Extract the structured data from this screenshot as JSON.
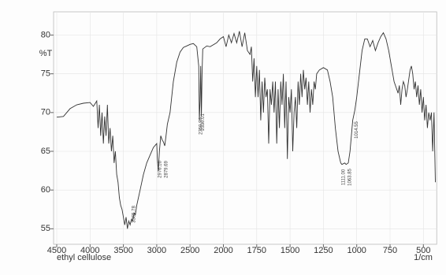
{
  "chart_data": {
    "type": "line",
    "y_label": "%T",
    "x_label": "ethyl cellulose",
    "x_unit": "1/cm",
    "xlim": [
      4500,
      400
    ],
    "ylim": [
      53,
      83
    ],
    "xticks": [
      4500,
      4000,
      3500,
      3000,
      2500,
      2000,
      1750,
      1500,
      1250,
      1000,
      750,
      500
    ],
    "yticks": [
      55,
      60,
      65,
      70,
      75,
      80
    ],
    "grid": true,
    "color": "#333333",
    "annotations": [
      3365.78,
      2976.16,
      2879.69,
      2359.94,
      2330.01,
      {
        "value": 1111,
        "label": "1111.00"
      },
      1063.85,
      1014.55
    ],
    "x": [
      4500,
      4400,
      4300,
      4200,
      4100,
      4000,
      3950,
      3900,
      3880,
      3860,
      3840,
      3820,
      3800,
      3780,
      3760,
      3740,
      3720,
      3700,
      3680,
      3660,
      3640,
      3620,
      3600,
      3580,
      3560,
      3540,
      3520,
      3500,
      3480,
      3460,
      3440,
      3420,
      3400,
      3380,
      3360,
      3340,
      3320,
      3300,
      3250,
      3200,
      3150,
      3100,
      3050,
      3000,
      2990,
      2976,
      2960,
      2940,
      2920,
      2900,
      2879,
      2860,
      2840,
      2800,
      2750,
      2700,
      2650,
      2600,
      2550,
      2500,
      2450,
      2400,
      2370,
      2360,
      2350,
      2340,
      2330,
      2320,
      2310,
      2250,
      2200,
      2100,
      2050,
      2000,
      1980,
      1960,
      1940,
      1920,
      1900,
      1880,
      1860,
      1840,
      1820,
      1800,
      1790,
      1780,
      1770,
      1760,
      1750,
      1740,
      1730,
      1720,
      1710,
      1700,
      1690,
      1680,
      1670,
      1660,
      1650,
      1640,
      1630,
      1620,
      1610,
      1600,
      1590,
      1580,
      1570,
      1560,
      1550,
      1540,
      1530,
      1520,
      1510,
      1500,
      1490,
      1480,
      1470,
      1460,
      1450,
      1440,
      1430,
      1420,
      1410,
      1400,
      1390,
      1380,
      1370,
      1360,
      1350,
      1340,
      1330,
      1320,
      1310,
      1300,
      1280,
      1250,
      1220,
      1200,
      1180,
      1160,
      1140,
      1120,
      1111,
      1090,
      1080,
      1063,
      1050,
      1040,
      1030,
      1014,
      1000,
      980,
      960,
      940,
      920,
      900,
      880,
      860,
      840,
      820,
      800,
      780,
      760,
      740,
      720,
      700,
      690,
      680,
      670,
      660,
      650,
      640,
      630,
      620,
      600,
      590,
      580,
      570,
      560,
      550,
      540,
      530,
      520,
      510,
      500,
      490,
      480,
      470,
      460,
      450,
      440,
      430,
      420,
      410
    ],
    "values": [
      69.4,
      69.5,
      70.5,
      71.0,
      71.2,
      71.3,
      70.8,
      71.5,
      68,
      71,
      67,
      70,
      66,
      69.5,
      67,
      71,
      66,
      68,
      65,
      67,
      63.5,
      65,
      62,
      61,
      59,
      58,
      57.5,
      56.5,
      55.5,
      56.5,
      55,
      56,
      55.5,
      56.2,
      56,
      57,
      56.8,
      58,
      60,
      62,
      63.5,
      64.5,
      65.5,
      66,
      64,
      62.5,
      65,
      67,
      66.5,
      66.2,
      65.7,
      67,
      68.5,
      70,
      74,
      76.5,
      77.8,
      78.4,
      78.6,
      78.8,
      78.9,
      78.5,
      76,
      69,
      71.5,
      76,
      69.5,
      75,
      78.2,
      78.6,
      78.5,
      79,
      79.5,
      79.8,
      78.5,
      80,
      79,
      80.2,
      79,
      80.5,
      78.5,
      80.3,
      78,
      77.5,
      78.5,
      74,
      77,
      72,
      76,
      72,
      75.5,
      69,
      74,
      70,
      74.5,
      72,
      73,
      66,
      73,
      71,
      74,
      70,
      74,
      66,
      73,
      68,
      74,
      71,
      75,
      68,
      74,
      64,
      72,
      70,
      73,
      65,
      70,
      72,
      68,
      74,
      71,
      75,
      72,
      75.5,
      73,
      74.5,
      71,
      74,
      70,
      73,
      71,
      74,
      73,
      75,
      75.5,
      75.8,
      75.5,
      74,
      72,
      68,
      65,
      63.5,
      63.3,
      63.5,
      63.3,
      63.5,
      65,
      67,
      69,
      70.3,
      72,
      75,
      78,
      79.5,
      79.5,
      78.5,
      79.3,
      78,
      79,
      79.8,
      80.3,
      79.5,
      78,
      76,
      74,
      73,
      72.5,
      73.5,
      71,
      73,
      74,
      73.5,
      72,
      73,
      75.5,
      76,
      75,
      73,
      74,
      72,
      73.5,
      71,
      73,
      70,
      72,
      69,
      71,
      68,
      70,
      69,
      70,
      65,
      70,
      61
    ]
  }
}
